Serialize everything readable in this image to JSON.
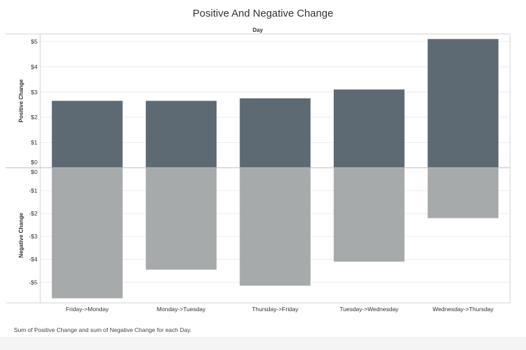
{
  "title": "Positive And Negative Change",
  "column_header": "Day",
  "caption": "Sum of Positive Change and sum of Negative Change for each Day.",
  "colors": {
    "positive": "#5e6a73",
    "negative": "#a7aaaa",
    "grid": "#ececec",
    "border": "#d0d0d0",
    "zero_line": "#bdbdbd",
    "text": "#333333"
  },
  "chart_data": {
    "type": "bar",
    "categories": [
      "Friday->Monday",
      "Monday->Tuesday",
      "Thursday->Friday",
      "Tuesday->Wednesday",
      "Wednesday->Thursday"
    ],
    "series": [
      {
        "name": "Positive Change",
        "values": [
          2.65,
          2.65,
          2.75,
          3.1,
          5.1
        ]
      },
      {
        "name": "Negative Change",
        "values": [
          -5.7,
          -4.45,
          -5.15,
          -4.1,
          -2.2
        ]
      }
    ],
    "panes": [
      {
        "ylabel": "Positive Change",
        "ylim": [
          0,
          5.3
        ],
        "ticks": [
          0,
          1,
          2,
          3,
          4,
          5
        ],
        "tick_labels": [
          "$0",
          "$1",
          "$2",
          "$3",
          "$4",
          "$5"
        ]
      },
      {
        "ylabel": "Negative Change",
        "ylim": [
          -5.9,
          0
        ],
        "ticks": [
          0,
          -1,
          -2,
          -3,
          -4,
          -5
        ],
        "tick_labels": [
          "$0",
          "-$1",
          "-$2",
          "-$3",
          "-$4",
          "-$5"
        ]
      }
    ],
    "xlabel": "",
    "grid": true,
    "legend": "none"
  }
}
